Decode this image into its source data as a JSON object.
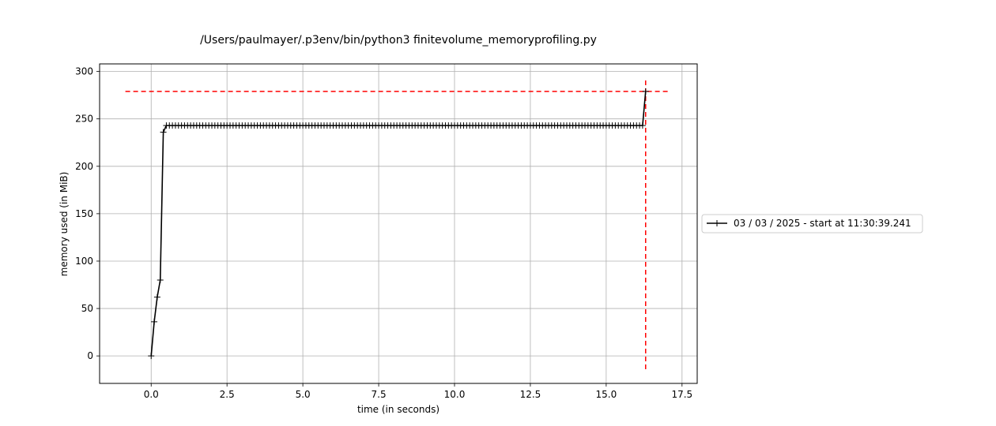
{
  "chart_data": {
    "type": "line",
    "title": "/Users/paulmayer/.p3env/bin/python3 finitevolume_memoryprofiling.py",
    "xlabel": "time (in seconds)",
    "ylabel": "memory used (in MiB)",
    "xlim": [
      -1.7,
      18.0
    ],
    "ylim": [
      -29,
      308
    ],
    "grid": true,
    "legend_position": "right",
    "x_ticks": [
      0.0,
      2.5,
      5.0,
      7.5,
      10.0,
      12.5,
      15.0,
      17.5
    ],
    "x_tick_labels": [
      "0.0",
      "2.5",
      "5.0",
      "7.5",
      "10.0",
      "12.5",
      "15.0",
      "17.5"
    ],
    "y_ticks": [
      0,
      50,
      100,
      150,
      200,
      250,
      300
    ],
    "y_tick_labels": [
      "0",
      "50",
      "100",
      "150",
      "200",
      "250",
      "300"
    ],
    "series": [
      {
        "name": "03 / 03 / 2025 - start at 11:30:39.241",
        "color": "#000000",
        "marker": "+",
        "x": [
          0.0,
          0.1,
          0.2,
          0.3,
          0.4,
          0.5,
          16.2,
          16.3
        ],
        "y": [
          0,
          36,
          62,
          80,
          236,
          243,
          243,
          279
        ],
        "plateau": {
          "x_start": 0.5,
          "x_end": 16.2,
          "step": 0.1,
          "y": 243
        }
      }
    ],
    "reference_lines": [
      {
        "orientation": "horizontal",
        "y": 279,
        "x_from": -0.85,
        "x_to": 17.1,
        "color": "#ff0000",
        "style": "dashed"
      },
      {
        "orientation": "vertical",
        "x": 16.3,
        "y_from": -14,
        "y_to": 293,
        "color": "#ff0000",
        "style": "dashed"
      }
    ]
  }
}
